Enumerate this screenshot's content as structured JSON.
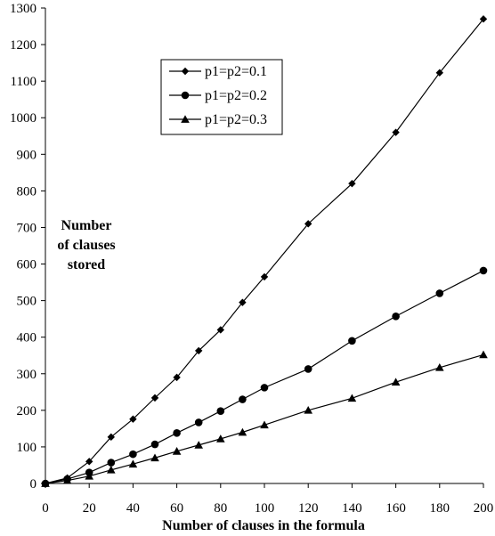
{
  "chart_data": {
    "type": "line",
    "title": "",
    "xlabel": "Number of clauses in the formula",
    "ylabel_lines": [
      "Number",
      "of clauses",
      "stored"
    ],
    "xlim": [
      0,
      200
    ],
    "ylim": [
      0,
      1300
    ],
    "xticks": [
      "0",
      "20",
      "40",
      "60",
      "80",
      "100",
      "120",
      "140",
      "160",
      "180",
      "200"
    ],
    "yticks": [
      "0",
      "100",
      "200",
      "300",
      "400",
      "500",
      "600",
      "700",
      "800",
      "900",
      "1000",
      "1100",
      "1200",
      "1300"
    ],
    "grid": false,
    "legend_position": "top-center",
    "series": [
      {
        "name": "p1=p2=0.1",
        "marker": "diamond",
        "color": "#000000",
        "x": [
          0,
          10,
          20,
          30,
          40,
          50,
          60,
          70,
          80,
          90,
          100,
          120,
          140,
          160,
          180,
          200
        ],
        "y": [
          0,
          15,
          60,
          127,
          176,
          234,
          290,
          363,
          420,
          495,
          565,
          710,
          820,
          960,
          1123,
          1270
        ]
      },
      {
        "name": "p1=p2=0.2",
        "marker": "circle",
        "color": "#000000",
        "x": [
          0,
          10,
          20,
          30,
          40,
          50,
          60,
          70,
          80,
          90,
          100,
          120,
          140,
          160,
          180,
          200
        ],
        "y": [
          0,
          12,
          30,
          57,
          80,
          107,
          138,
          167,
          198,
          230,
          262,
          313,
          390,
          457,
          520,
          582
        ]
      },
      {
        "name": "p1=p2=0.3",
        "marker": "triangle",
        "color": "#000000",
        "x": [
          0,
          10,
          20,
          30,
          40,
          50,
          60,
          70,
          80,
          90,
          100,
          120,
          140,
          160,
          180,
          200
        ],
        "y": [
          0,
          8,
          20,
          37,
          53,
          70,
          88,
          105,
          122,
          140,
          160,
          200,
          233,
          277,
          317,
          352
        ]
      }
    ]
  }
}
